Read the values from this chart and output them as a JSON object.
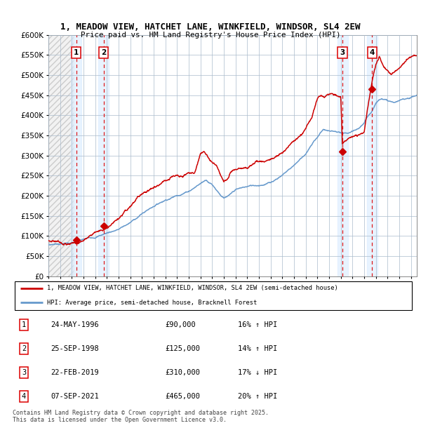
{
  "title_line1": "1, MEADOW VIEW, HATCHET LANE, WINKFIELD, WINDSOR, SL4 2EW",
  "title_line2": "Price paid vs. HM Land Registry's House Price Index (HPI)",
  "ylabel_ticks": [
    "£0",
    "£50K",
    "£100K",
    "£150K",
    "£200K",
    "£250K",
    "£300K",
    "£350K",
    "£400K",
    "£450K",
    "£500K",
    "£550K",
    "£600K"
  ],
  "ytick_values": [
    0,
    50000,
    100000,
    150000,
    200000,
    250000,
    300000,
    350000,
    400000,
    450000,
    500000,
    550000,
    600000
  ],
  "purchases": [
    {
      "num": 1,
      "date_str": "24-MAY-1996",
      "year": 1996.39,
      "price": 90000,
      "hpi_rel": "16% ↑ HPI"
    },
    {
      "num": 2,
      "date_str": "25-SEP-1998",
      "year": 1998.73,
      "price": 125000,
      "hpi_rel": "14% ↑ HPI"
    },
    {
      "num": 3,
      "date_str": "22-FEB-2019",
      "year": 2019.14,
      "price": 310000,
      "hpi_rel": "17% ↓ HPI"
    },
    {
      "num": 4,
      "date_str": "07-SEP-2021",
      "year": 2021.68,
      "price": 465000,
      "hpi_rel": "20% ↑ HPI"
    }
  ],
  "legend_line1": "1, MEADOW VIEW, HATCHET LANE, WINKFIELD, WINDSOR, SL4 2EW (semi-detached house)",
  "legend_line2": "HPI: Average price, semi-detached house, Bracknell Forest",
  "table_rows": [
    {
      "num": 1,
      "date": "24-MAY-1996",
      "price": "£90,000",
      "hpi": "16% ↑ HPI"
    },
    {
      "num": 2,
      "date": "25-SEP-1998",
      "price": "£125,000",
      "hpi": "14% ↑ HPI"
    },
    {
      "num": 3,
      "date": "22-FEB-2019",
      "price": "£310,000",
      "hpi": "17% ↓ HPI"
    },
    {
      "num": 4,
      "date": "07-SEP-2021",
      "price": "£465,000",
      "hpi": "20% ↑ HPI"
    }
  ],
  "footer": "Contains HM Land Registry data © Crown copyright and database right 2025.\nThis data is licensed under the Open Government Licence v3.0.",
  "price_color": "#cc0000",
  "hpi_color": "#6699cc",
  "vline_color": "#dd0000",
  "purchase_shade_color": "#ddeeff",
  "grid_color": "#aabbcc",
  "xmin": 1994.0,
  "xmax": 2025.5,
  "ymin": 0,
  "ymax": 600000
}
